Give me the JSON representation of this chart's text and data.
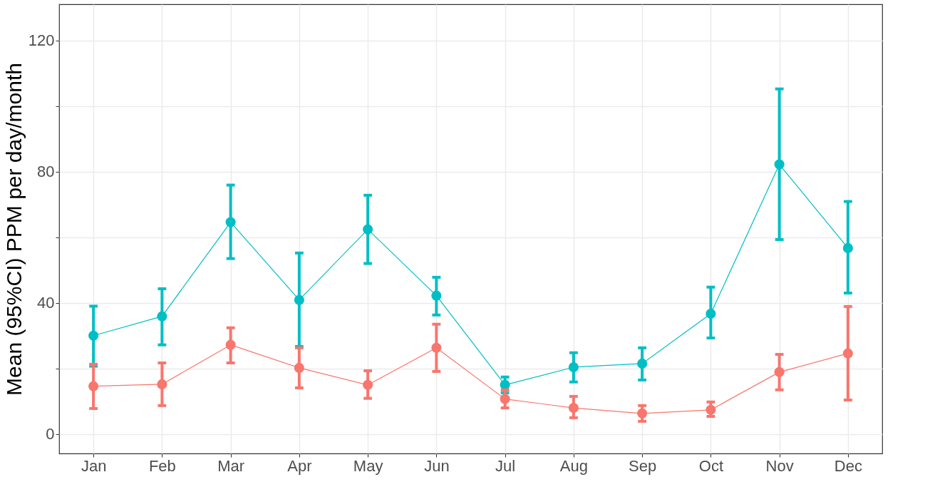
{
  "chart_data": {
    "type": "line",
    "ylabel": "Mean (95%CI) PPM per day/month",
    "categories": [
      "Jan",
      "Feb",
      "Mar",
      "Apr",
      "May",
      "Jun",
      "Jul",
      "Aug",
      "Sep",
      "Oct",
      "Nov",
      "Dec"
    ],
    "series": [
      {
        "color": "#00bfc4",
        "values": [
          30,
          35.9,
          64.6,
          40.9,
          62.4,
          42.2,
          15,
          20.4,
          21.5,
          36.7,
          82.2,
          56.7
        ],
        "errors": [
          [
            20.7,
            39
          ],
          [
            27.2,
            44.3
          ],
          [
            53.5,
            75.9
          ],
          [
            26.7,
            55.2
          ],
          [
            52,
            72.8
          ],
          [
            36.3,
            47.8
          ],
          [
            12.6,
            17.4
          ],
          [
            15.9,
            24.8
          ],
          [
            16.5,
            26.3
          ],
          [
            29.3,
            44.8
          ],
          [
            59.3,
            105.2
          ],
          [
            43,
            70.9
          ]
        ]
      },
      {
        "color": "#f8766d",
        "values": [
          14.6,
          15.2,
          27.2,
          20.2,
          15,
          26.3,
          10.7,
          8,
          6.3,
          7.4,
          18.9,
          24.6
        ],
        "errors": [
          [
            7.8,
            21.3
          ],
          [
            8.7,
            21.7
          ],
          [
            21.7,
            32.4
          ],
          [
            14.1,
            26.3
          ],
          [
            10.9,
            19.3
          ],
          [
            19.1,
            33.5
          ],
          [
            8,
            13.5
          ],
          [
            5,
            11.5
          ],
          [
            3.9,
            8.7
          ],
          [
            5.4,
            9.8
          ],
          [
            13.5,
            24.3
          ],
          [
            10.4,
            38.9
          ]
        ]
      }
    ],
    "ylim": [
      -5.9,
      131
    ],
    "yticks": [
      0,
      {
        "value": 20,
        "label": null
      },
      40,
      {
        "value": 60,
        "label": null
      },
      80,
      {
        "value": 100,
        "label": null
      },
      120
    ],
    "grid": true,
    "marker": "circle",
    "line_style": "solid"
  }
}
